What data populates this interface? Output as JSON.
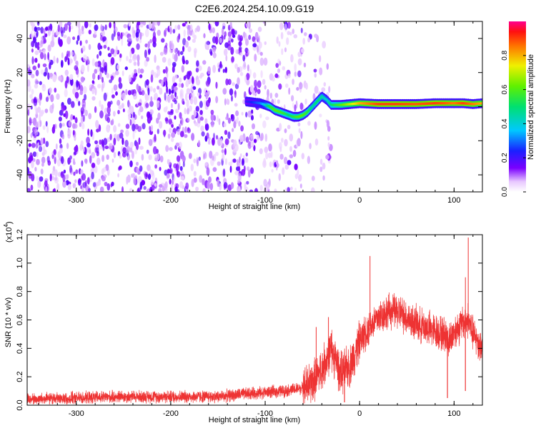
{
  "title": "C2E6.2024.254.10.09.G19",
  "chart_data": [
    {
      "type": "heatmap",
      "name": "spectrogram",
      "xlabel": "Height of straight line (km)",
      "ylabel": "Frequency (Hz)",
      "xlim": [
        -352,
        130
      ],
      "ylim": [
        -50,
        50
      ],
      "xticks": [
        "-300",
        "-200",
        "-100",
        "0",
        "100"
      ],
      "yticks": [
        "-40",
        "-20",
        "0",
        "20",
        "40"
      ],
      "colorbar": {
        "label": "Normalized spectral amplitude",
        "range": [
          0,
          1
        ],
        "ticks": [
          "0.0",
          "0.2",
          "0.4",
          "0.6",
          "0.8"
        ]
      },
      "ridge": {
        "x": [
          -120,
          -105,
          -100,
          -95,
          -90,
          -85,
          -80,
          -75,
          -70,
          -65,
          -60,
          -55,
          -50,
          -45,
          -40,
          -35,
          -30,
          -20,
          -10,
          0,
          20,
          40,
          60,
          80,
          90,
          100,
          110,
          120,
          130
        ],
        "y": [
          3,
          2,
          1,
          0,
          -2,
          -3,
          -4,
          -5,
          -6,
          -6,
          -5,
          -3,
          0,
          3,
          6,
          4,
          1,
          1,
          1.5,
          2,
          1.5,
          1.5,
          1.5,
          2,
          2,
          2,
          2,
          1.5,
          2
        ],
        "amplitude": [
          0.2,
          0.3,
          0.4,
          0.55,
          0.6,
          0.6,
          0.55,
          0.5,
          0.55,
          0.6,
          0.6,
          0.55,
          0.45,
          0.5,
          0.45,
          0.4,
          0.5,
          0.6,
          0.7,
          0.8,
          0.9,
          0.9,
          0.88,
          0.9,
          0.88,
          0.85,
          0.9,
          0.85,
          0.8
        ]
      }
    },
    {
      "type": "line",
      "name": "snr",
      "xlabel": "Height of straight line (km)",
      "ylabel": "SNR (10 * v/v)",
      "scale_label": "(x10",
      "scale_exp": "4",
      "scale_close": ")",
      "color": "#ee3333",
      "xlim": [
        -352,
        130
      ],
      "ylim": [
        0,
        1.2
      ],
      "xticks": [
        "-300",
        "-200",
        "-100",
        "0",
        "100"
      ],
      "yticks": [
        "0.0",
        "0.2",
        "0.4",
        "0.6",
        "0.8",
        "1.0",
        "1.2"
      ],
      "x": [
        -352,
        -300,
        -250,
        -200,
        -150,
        -120,
        -100,
        -80,
        -60,
        -50,
        -40,
        -30,
        -20,
        -10,
        0,
        10,
        20,
        30,
        40,
        50,
        60,
        70,
        80,
        90,
        95,
        100,
        105,
        110,
        115,
        120,
        125,
        130
      ],
      "y": [
        0.04,
        0.05,
        0.06,
        0.06,
        0.06,
        0.08,
        0.09,
        0.1,
        0.12,
        0.16,
        0.25,
        0.4,
        0.22,
        0.28,
        0.45,
        0.55,
        0.62,
        0.66,
        0.66,
        0.62,
        0.57,
        0.55,
        0.52,
        0.5,
        0.45,
        0.52,
        0.55,
        0.58,
        0.6,
        0.5,
        0.45,
        0.4
      ],
      "spikes": [
        {
          "x": 11,
          "y": 1.05
        },
        {
          "x": 115,
          "y": 1.18
        },
        {
          "x": 112,
          "y": 0.9
        },
        {
          "x": -46,
          "y": 0.55
        },
        {
          "x": -33,
          "y": 0.62
        }
      ],
      "dips": [
        {
          "x": 93,
          "y": 0.05
        },
        {
          "x": 112,
          "y": 0.1
        },
        {
          "x": -16,
          "y": 0.02
        }
      ]
    }
  ]
}
